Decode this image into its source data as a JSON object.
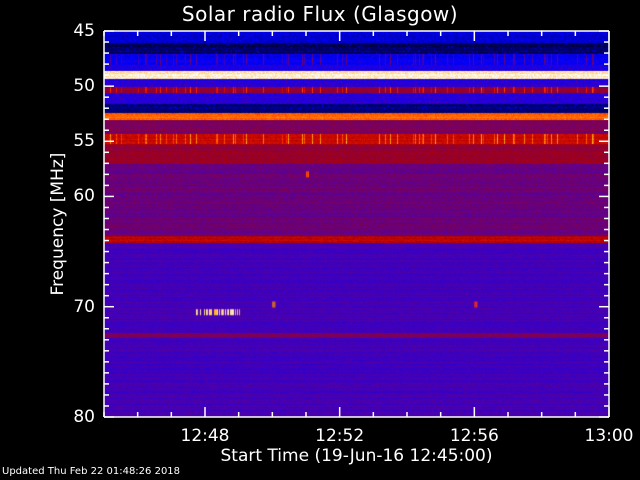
{
  "chart_data": {
    "type": "heatmap",
    "title": "Solar radio Flux (Glasgow)",
    "xlabel": "Start Time (19-Jun-16 12:45:00)",
    "ylabel": "Frequency [MHz]",
    "x_range": [
      "12:45",
      "13:00"
    ],
    "x_ticks": [
      "12:48",
      "12:52",
      "12:56",
      "13:00"
    ],
    "ylim": [
      45,
      80
    ],
    "y_inverted": true,
    "y_ticks": [
      45,
      50,
      55,
      60,
      70,
      80
    ],
    "grid": false,
    "colormap": [
      "#000010",
      "#0000ff",
      "#4a00b0",
      "#b00000",
      "#ff2000",
      "#ffa000",
      "#ffffff"
    ],
    "frequency_profile_mhz_intensity": [
      [
        45.0,
        0.18
      ],
      [
        46.0,
        0.08
      ],
      [
        47.0,
        0.22
      ],
      [
        48.0,
        0.3
      ],
      [
        48.6,
        0.97
      ],
      [
        49.3,
        0.3
      ],
      [
        50.0,
        0.55
      ],
      [
        50.6,
        0.3
      ],
      [
        51.6,
        0.1
      ],
      [
        52.4,
        0.82
      ],
      [
        53.0,
        0.5
      ],
      [
        54.3,
        0.65
      ],
      [
        55.2,
        0.55
      ],
      [
        57.0,
        0.46
      ],
      [
        63.5,
        0.62
      ],
      [
        64.2,
        0.38
      ],
      [
        72.3,
        0.5
      ],
      [
        72.8,
        0.38
      ],
      [
        80.0,
        0.38
      ]
    ],
    "bursts": [
      {
        "time": "12:48",
        "freq_mhz": 70.5,
        "intensity": 0.9
      },
      {
        "time": "12:50",
        "freq_mhz": 69.8,
        "intensity": 0.8
      },
      {
        "time": "12:51",
        "freq_mhz": 58.0,
        "intensity": 0.75
      },
      {
        "time": "12:56",
        "freq_mhz": 69.8,
        "intensity": 0.75
      }
    ]
  },
  "footer": {
    "updated": "Updated Thu Feb 22 01:48:26 2018"
  }
}
